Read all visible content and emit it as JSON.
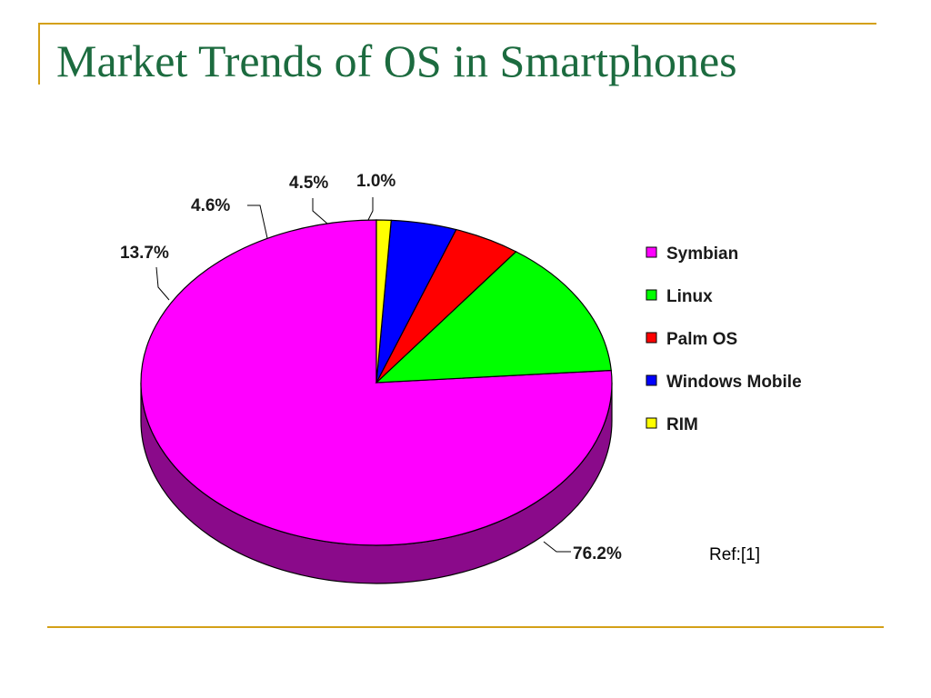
{
  "slide": {
    "title": "Market Trends of OS in Smartphones",
    "reference": "Ref:[1]"
  },
  "colors": {
    "frame_accent": "#d4a017",
    "title": "#1c6b3f"
  },
  "chart_data": {
    "type": "pie",
    "style": "3d",
    "title": "",
    "legend_position": "right",
    "categories": [
      "Symbian",
      "Linux",
      "Palm OS",
      "Windows Mobile",
      "RIM"
    ],
    "values": [
      76.2,
      13.7,
      4.6,
      4.5,
      1.0
    ],
    "labels": [
      "76.2%",
      "13.7%",
      "4.6%",
      "4.5%",
      "1.0%"
    ],
    "colors": [
      "#ff00ff",
      "#00ff00",
      "#ff0000",
      "#0000ff",
      "#ffff00"
    ],
    "side_colors": [
      "#8a0a8a",
      "#0a8a0a",
      "#8a0a0a",
      "#0a0a8a",
      "#8a8a0a"
    ]
  }
}
